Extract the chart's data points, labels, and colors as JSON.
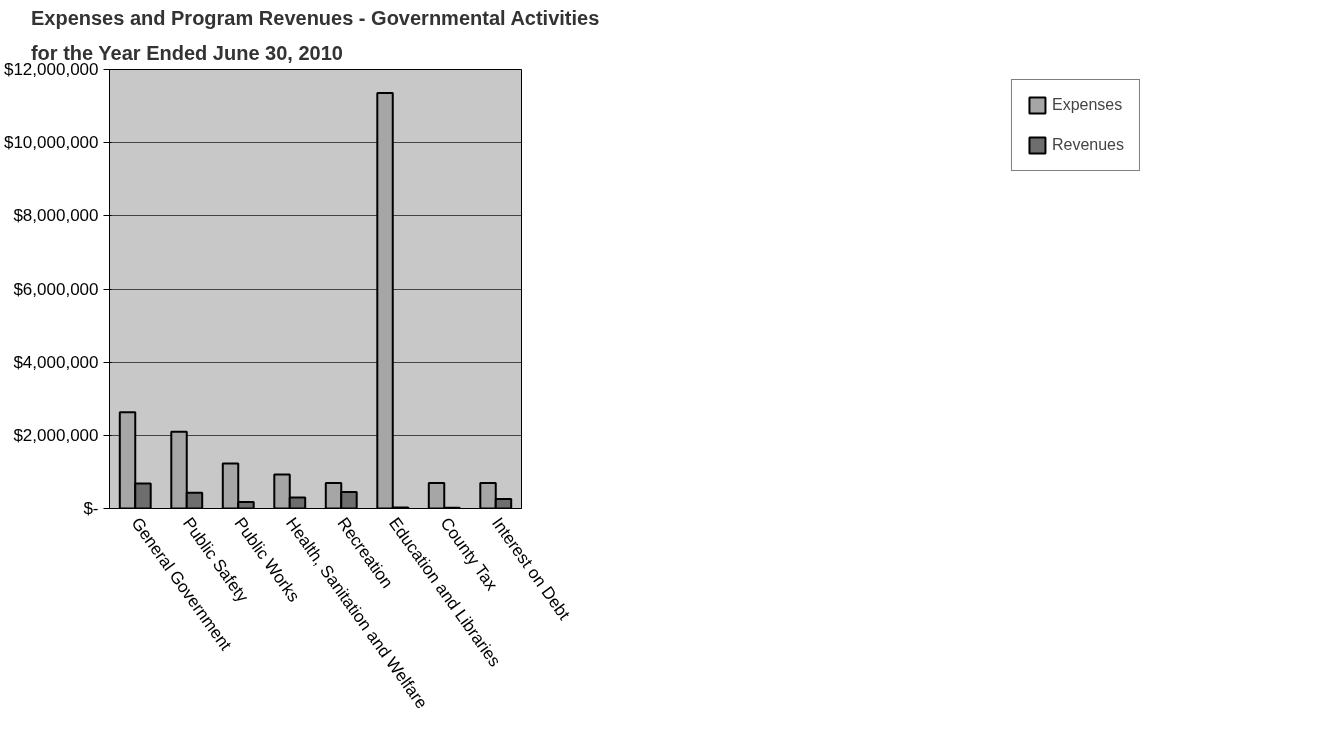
{
  "chart_data": {
    "type": "bar",
    "title": "Expenses and Program Revenues - Governmental Activities\nfor the Year Ended June 30, 2010",
    "categories": [
      "General Government",
      "Public Safety",
      "Public Works",
      "Health, Sanitation and Welfare",
      "Recreation",
      "Education and Libraries",
      "County Tax",
      "Interest on Debt"
    ],
    "series": [
      {
        "name": "Expenses",
        "color": "#a6a6a6",
        "values": [
          2630000,
          2100000,
          1230000,
          930000,
          700000,
          11360000,
          700000,
          700000
        ]
      },
      {
        "name": "Revenues",
        "color": "#6e6e6e",
        "values": [
          680000,
          430000,
          180000,
          300000,
          450000,
          30000,
          20000,
          260000
        ]
      }
    ],
    "ylim": [
      0,
      12000000
    ],
    "yticks": [
      {
        "value": 0,
        "label": "$-"
      },
      {
        "value": 2000000,
        "label": "$2,000,000"
      },
      {
        "value": 4000000,
        "label": "$4,000,000"
      },
      {
        "value": 6000000,
        "label": "$6,000,000"
      },
      {
        "value": 8000000,
        "label": "$8,000,000"
      },
      {
        "value": 10000000,
        "label": "$10,000,000"
      },
      {
        "value": 12000000,
        "label": "$12,000,000"
      }
    ],
    "grid": "y",
    "legend": "right"
  }
}
